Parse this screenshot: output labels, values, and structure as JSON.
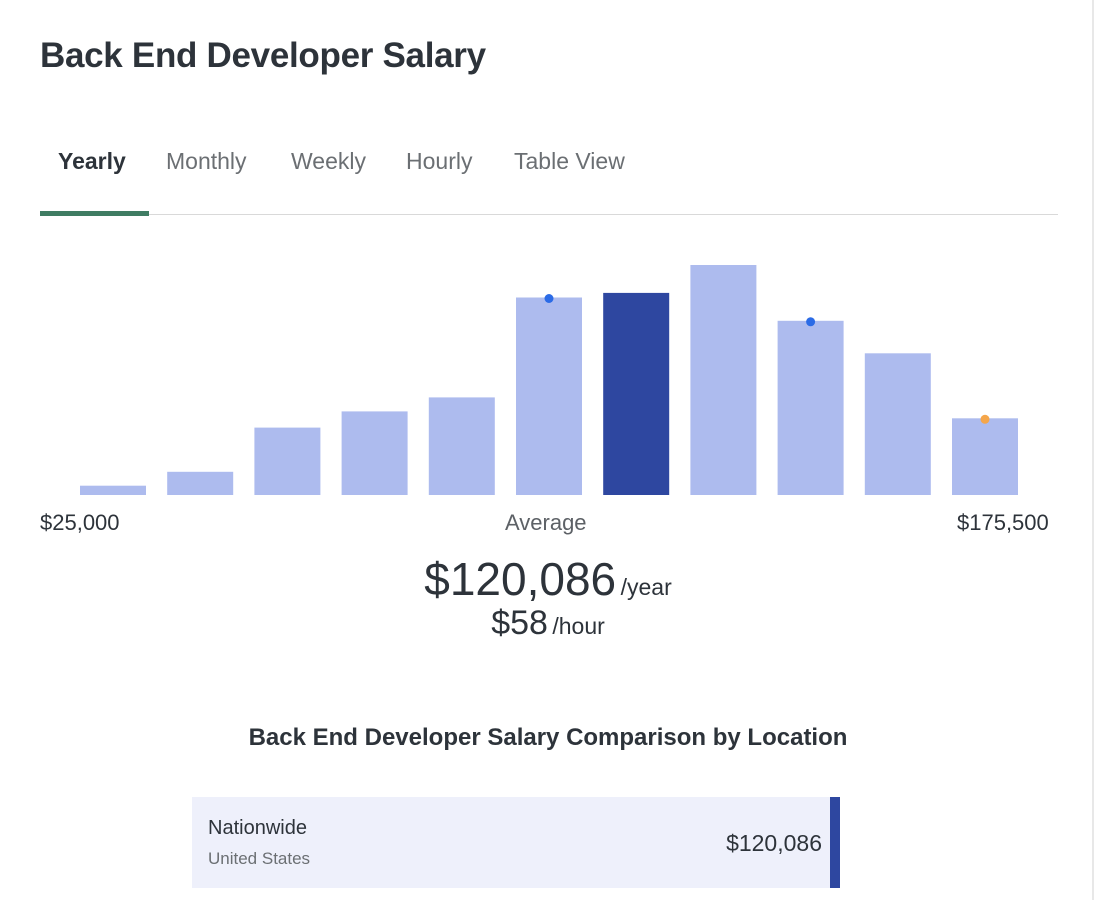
{
  "title": "Back End Developer Salary",
  "tabs": [
    {
      "label": "Yearly",
      "active": true
    },
    {
      "label": "Monthly",
      "active": false
    },
    {
      "label": "Weekly",
      "active": false
    },
    {
      "label": "Hourly",
      "active": false
    },
    {
      "label": "Table View",
      "active": false
    }
  ],
  "chart_data": {
    "type": "bar",
    "min_label": "$25,000",
    "max_label": "$175,500",
    "average_label": "Average",
    "values": [
      4,
      10,
      29,
      36,
      42,
      85,
      87,
      99,
      75,
      61,
      33
    ],
    "highlight_index": 6,
    "markers": [
      {
        "bar": 5,
        "color": "#2b6be6"
      },
      {
        "bar": 8,
        "color": "#2b6be6"
      },
      {
        "bar": 10,
        "color": "#f5a64a"
      }
    ],
    "bar_color": "#adbbee",
    "highlight_color": "#2e47a0",
    "grid": false
  },
  "average": {
    "yearly": "$120,086",
    "yearly_unit": "/year",
    "hourly": "$58",
    "hourly_unit": "/hour"
  },
  "comparison": {
    "title": "Back End Developer Salary Comparison by Location",
    "rows": [
      {
        "name": "Nationwide",
        "sub": "United States",
        "value": "$120,086"
      }
    ]
  }
}
